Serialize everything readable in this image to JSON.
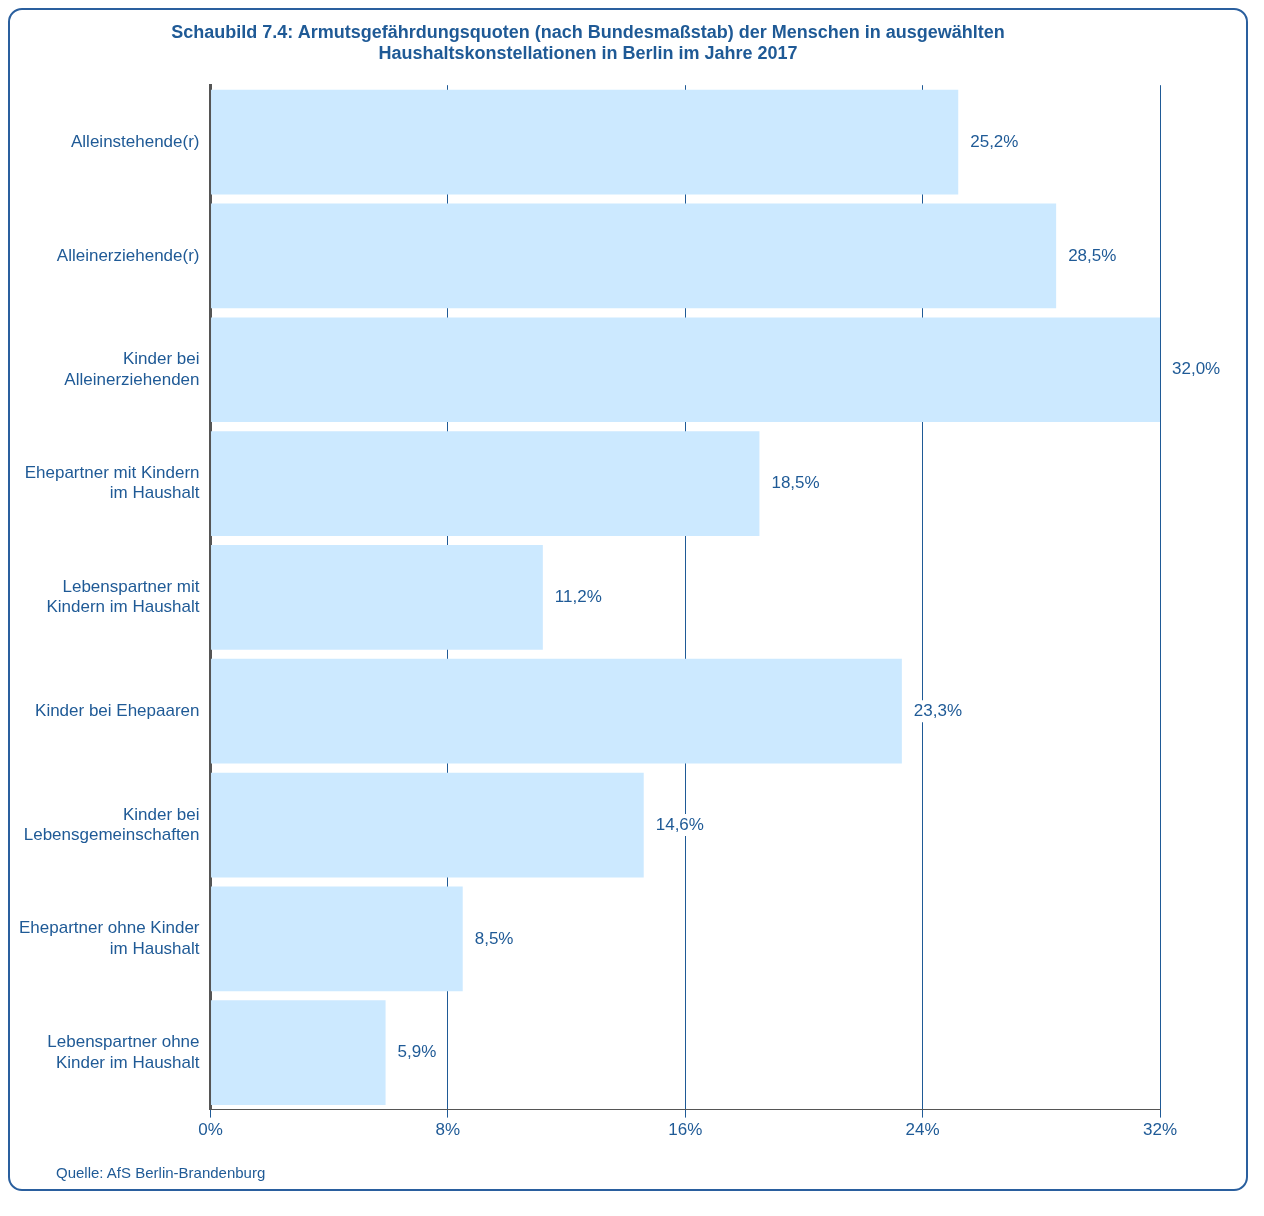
{
  "chart_data": {
    "type": "bar",
    "orientation": "horizontal",
    "title": "Schaubild 7.4: Armutsgefährdungsquoten (nach Bundesmaßstab) der Menschen in ausgewählten Haushaltskonstellationen in Berlin im Jahre 2017",
    "categories": [
      "Alleinstehende(r)",
      "Alleinerziehende(r)",
      "Kinder bei Alleinerziehenden",
      "Ehepartner mit Kindern im Haushalt",
      "Lebenspartner mit Kindern im Haushalt",
      "Kinder bei Ehepaaren",
      "Kinder bei Lebensgemeinschaften",
      "Ehepartner ohne Kinder im Haushalt",
      "Lebenspartner ohne Kinder im Haushalt"
    ],
    "values": [
      25.2,
      28.5,
      32.0,
      18.5,
      11.2,
      23.3,
      14.6,
      8.5,
      5.9
    ],
    "value_labels": [
      "25,2%",
      "28,5%",
      "32,0%",
      "18,5%",
      "11,2%",
      "23,3%",
      "14,6%",
      "8,5%",
      "5,9%"
    ],
    "color": "#cce9ff",
    "xlim": [
      0,
      32
    ],
    "xticks": [
      {
        "value": 0,
        "label": "0%"
      },
      {
        "value": 8,
        "label": "8%"
      },
      {
        "value": 16,
        "label": "16%"
      },
      {
        "value": 24,
        "label": "24%"
      },
      {
        "value": 32,
        "label": "32%"
      }
    ],
    "grid": "x",
    "annotations": [
      "Quelle: AfS Berlin-Brandenburg"
    ]
  }
}
